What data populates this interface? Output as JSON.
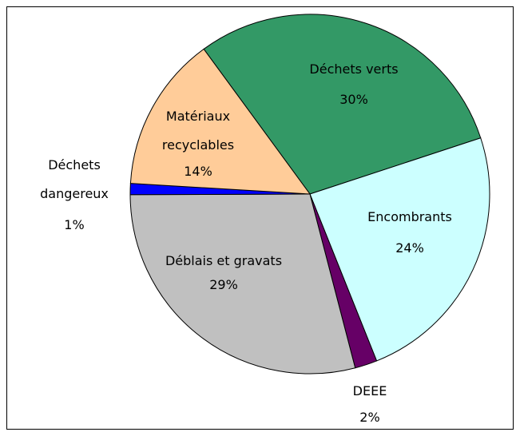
{
  "chart_data": {
    "type": "pie",
    "categories": [
      "Déchets verts",
      "Encombrants",
      "DEEE",
      "Déblais et gravats",
      "Déchets dangereux",
      "Matériaux recyclables"
    ],
    "values": [
      30,
      24,
      2,
      29,
      1,
      14
    ],
    "value_labels": [
      "30%",
      "24%",
      "2%",
      "29%",
      "1%",
      "14%"
    ],
    "colors": [
      "#339966",
      "#ccffff",
      "#660066",
      "#c0c0c0",
      "#0000ff",
      "#ffcc99"
    ]
  }
}
